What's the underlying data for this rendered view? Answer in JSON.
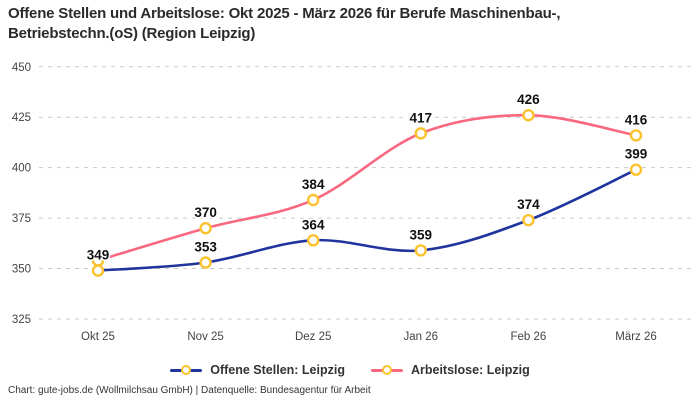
{
  "title": "Offene Stellen und Arbeitslose: Okt 2025 - März 2026 für Berufe Maschinenbau-,\nBetriebstechn.(oS) (Region Leipzig)",
  "footer": "Chart: gute-jobs.de (Wollmilchsau GmbH) | Datenquelle: Bundesagentur für Arbeit",
  "colors": {
    "offene_stellen_line": "#20349e",
    "arbeitslose_line": "#f9687f",
    "marker_ring": "#fcc22e",
    "marker_fill": "#ffffff",
    "gridline": "#c9c9c9",
    "axis_text": "#444444",
    "value_label": "#111111",
    "title_text": "#2b2b2b"
  },
  "chart_data": {
    "type": "line",
    "curve": "smooth",
    "categories": [
      "Okt 25",
      "Nov 25",
      "Dez 25",
      "Jan 26",
      "Feb 26",
      "März 26"
    ],
    "series": [
      {
        "name": "Offene Stellen: Leipzig",
        "color": "#20349e",
        "values": [
          349,
          353,
          364,
          359,
          374,
          399
        ],
        "point_labels": [
          "349",
          "353",
          "364",
          "359",
          "374",
          "399"
        ]
      },
      {
        "name": "Arbeitslose: Leipzig",
        "color": "#f9687f",
        "values": [
          354,
          370,
          384,
          417,
          426,
          416
        ],
        "point_labels": [
          "",
          "370",
          "384",
          "417",
          "426",
          "416"
        ]
      }
    ],
    "ylim": [
      325,
      450
    ],
    "yticks": [
      325,
      350,
      375,
      400,
      425,
      450
    ],
    "grid": "horizontal-dashed",
    "legend_position": "bottom"
  }
}
